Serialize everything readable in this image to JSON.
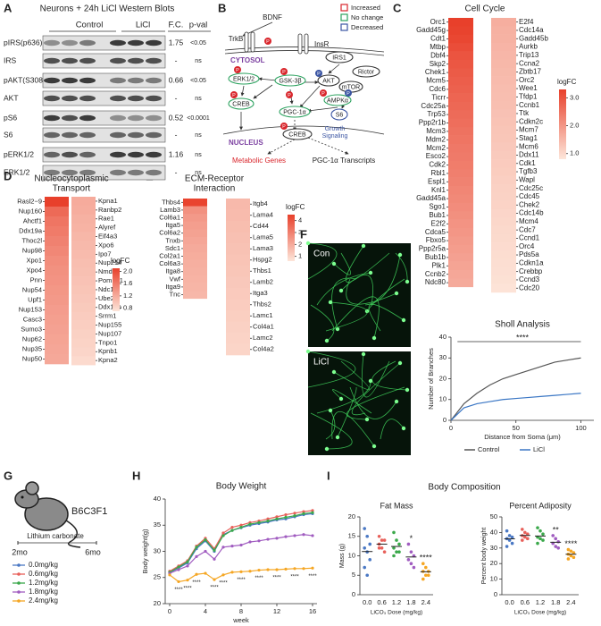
{
  "panel_labels": [
    "A",
    "B",
    "C",
    "D",
    "E",
    "F",
    "G",
    "H",
    "I"
  ],
  "western_blot": {
    "title": "Neurons + 24h LiCl Western Blots",
    "headers": [
      "Control",
      "LiCl",
      "F.C.",
      "p-val"
    ],
    "rows": [
      {
        "protein": "pIRS(p636)",
        "fc": 1.75,
        "pval": "<0.05"
      },
      {
        "protein": "IRS",
        "fc": "-",
        "pval": "ns"
      },
      {
        "protein": "pAKT(S308)",
        "fc": 0.66,
        "pval": "<0.05"
      },
      {
        "protein": "AKT",
        "fc": "-",
        "pval": "ns"
      },
      {
        "protein": "pS6",
        "fc": 0.52,
        "pval": "<0.0001"
      },
      {
        "protein": "S6",
        "fc": "-",
        "pval": "ns"
      },
      {
        "protein": "pERK1/2",
        "fc": 1.16,
        "pval": "ns"
      },
      {
        "protein": "ERK1/2",
        "fc": "-",
        "pval": "ns"
      }
    ]
  },
  "pathway": {
    "bdnf": "BDNF",
    "trkb": "TrkB",
    "insr": "InsR",
    "cytosol": "CYTOSOL",
    "irs1": "IRS1",
    "erk": "ERK1/2",
    "gsk": "GSK-3β",
    "akt": "AKT",
    "rictor": "Rictor",
    "mtor": "mTOR",
    "creb": "CREB",
    "pgc": "PGC-1α",
    "ampk": "AMPKα",
    "s6": "S6",
    "growth": [
      "Growth",
      "Signaling"
    ],
    "nucleus": "NUCLEUS",
    "metabolic": "Metabolic Genes",
    "transcripts": "PGC-1α Transcripts",
    "phospho": "P",
    "legend": [
      "Increased",
      "No change",
      "Decreased"
    ]
  },
  "image_panel": {
    "con": "Con",
    "licl": "LiCl"
  },
  "study_design": {
    "strain": "B6C3F1",
    "treatment": "Lithium carbonate",
    "start": "2mo",
    "end": "6mo"
  },
  "body_composition_title": "Body Composition",
  "chart_data": [
    {
      "type": "heatmap",
      "title": "Cell Cycle",
      "colorbar_label": "logFC",
      "colors": [
        "#fde6da",
        "#e8402b"
      ],
      "clim": [
        0.8,
        3.3
      ],
      "cticks": [
        {
          "value": 1,
          "label": "1.0"
        },
        {
          "value": 2,
          "label": "2.0"
        },
        {
          "value": 3,
          "label": "3.0"
        }
      ],
      "columns": [
        {
          "categories": [
            "Orc1",
            "Gadd45g",
            "Cdt1",
            "Mtbp",
            "Dbf4",
            "Skp2",
            "Chek1",
            "Mcm5",
            "Cdc6",
            "Ticrr",
            "Cdc25a",
            "Trp53",
            "Ppp2r1b",
            "Mcm3",
            "Mdm2",
            "Mcm2",
            "Esco2",
            "Cdk2",
            "Rbl1",
            "Espl1",
            "Knl1",
            "Gadd45a",
            "Sgo1",
            "Bub1",
            "E2f2",
            "Cdca5",
            "Fbxo5",
            "Ppp2r5a",
            "Bub1b",
            "Plk1",
            "Ccnb2",
            "Ndc80"
          ],
          "values": [
            3.3,
            3.25,
            3.2,
            3.1,
            3.0,
            2.95,
            2.9,
            2.85,
            2.8,
            2.75,
            2.7,
            2.65,
            2.6,
            2.55,
            2.5,
            2.45,
            2.42,
            2.38,
            2.35,
            2.3,
            2.25,
            2.2,
            2.15,
            2.1,
            2.05,
            2.0,
            1.95,
            1.9,
            1.85,
            1.8,
            1.75,
            1.7
          ]
        },
        {
          "categories": [
            "E2f4",
            "Cdc14a",
            "Gadd45b",
            "Aurkb",
            "Trip13",
            "Ccna2",
            "Zbtb17",
            "Orc2",
            "Wee1",
            "Tfdp1",
            "Ccnb1",
            "Ttk",
            "Cdkn2c",
            "Mcm7",
            "Stag1",
            "Mcm6",
            "Ddx11",
            "Cdk1",
            "Tgfb3",
            "Wapl",
            "Cdc25c",
            "Cdc45",
            "Chek2",
            "Cdc14b",
            "Mcm4",
            "Cdc7",
            "Ccnd1",
            "Orc4",
            "Pds5a",
            "Cdkn1a",
            "Crebbp",
            "Ccnd3",
            "Cdc20"
          ],
          "values": [
            1.65,
            1.6,
            1.58,
            1.55,
            1.52,
            1.5,
            1.47,
            1.45,
            1.42,
            1.4,
            1.38,
            1.35,
            1.33,
            1.3,
            1.28,
            1.25,
            1.22,
            1.2,
            1.18,
            1.15,
            1.12,
            1.1,
            1.08,
            1.05,
            1.03,
            1.0,
            0.98,
            0.96,
            0.94,
            0.92,
            0.9,
            0.88,
            0.85
          ]
        }
      ]
    },
    {
      "type": "heatmap",
      "title": [
        "Nucleocytoplasmic",
        "Transport"
      ],
      "colorbar_label": "logFC",
      "colors": [
        "#fde6da",
        "#e8402b"
      ],
      "clim": [
        0.7,
        2.1
      ],
      "cticks": [
        0.8,
        1.2,
        1.6,
        {
          "value": 2,
          "label": "2.0"
        }
      ],
      "columns": [
        {
          "categories": [
            "Rasl2−9",
            "Nup160",
            "Ahctf1",
            "Ddx19a",
            "Thoc2l",
            "Nup98",
            "Xpo1",
            "Xpo4",
            "Pnn",
            "Nup54",
            "Upf1",
            "Nup153",
            "Casc3",
            "Sumo3",
            "Nup62",
            "Nup35",
            "Nup50"
          ],
          "values": [
            2.1,
            1.75,
            1.65,
            1.6,
            1.55,
            1.5,
            1.45,
            1.42,
            1.4,
            1.37,
            1.35,
            1.32,
            1.3,
            1.28,
            1.26,
            1.24,
            1.22
          ]
        },
        {
          "categories": [
            "Kpna1",
            "Ranbp2",
            "Rae1",
            "Alyref",
            "Eif4a3",
            "Xpo6",
            "Ipo7",
            "Nup214",
            "Nmd3",
            "Pom121",
            "Ndc1",
            "Ube2i",
            "Ddx19b",
            "Srrm1",
            "Nup155",
            "Nup107",
            "Tnpo1",
            "Kpnb1",
            "Kpna2"
          ],
          "values": [
            1.2,
            1.18,
            1.15,
            1.13,
            1.1,
            1.08,
            1.06,
            1.04,
            1.02,
            1.0,
            0.98,
            0.96,
            0.94,
            0.92,
            0.9,
            0.88,
            0.86,
            0.84,
            0.8
          ]
        }
      ]
    },
    {
      "type": "heatmap",
      "title": [
        "ECM-Receptor",
        "Interaction"
      ],
      "colorbar_label": "logFC",
      "colors": [
        "#fde6da",
        "#e8402b"
      ],
      "clim": [
        0.6,
        4.5
      ],
      "cticks": [
        1,
        2,
        3,
        4
      ],
      "columns": [
        {
          "categories": [
            "Thbs4",
            "Lamb3",
            "Col6a1",
            "Itga5",
            "Col6a2",
            "Tnxb",
            "Sdc1",
            "Col2a1",
            "Col6a3",
            "Itga8",
            "Vwf",
            "Itga9",
            "Tnc"
          ],
          "values": [
            4.4,
            2.6,
            2.4,
            2.3,
            2.2,
            2.1,
            2.0,
            1.95,
            1.9,
            1.85,
            1.8,
            1.75,
            1.7
          ]
        },
        {
          "categories": [
            "Itgb4",
            "Lama4",
            "Cd44",
            "Lama5",
            "Lama3",
            "Hspg2",
            "Thbs1",
            "Lamb2",
            "Itga3",
            "Thbs2",
            "Lamc1",
            "Col4a1",
            "Lamc2",
            "Col4a2"
          ],
          "values": [
            1.65,
            1.6,
            1.55,
            1.5,
            1.45,
            1.4,
            1.35,
            1.3,
            1.25,
            1.2,
            1.15,
            1.1,
            1.05,
            1.0
          ]
        }
      ]
    },
    {
      "type": "line",
      "title": "Sholl Analysis",
      "xlabel": "Distance from Soma (μm)",
      "ylabel": "Number of Branches",
      "x": [
        0,
        10,
        20,
        30,
        40,
        50,
        60,
        70,
        80,
        90,
        100
      ],
      "xlim": [
        0,
        110
      ],
      "xticks": [
        0,
        50,
        100
      ],
      "ylim": [
        0,
        40
      ],
      "yticks": [
        0,
        10,
        20,
        30,
        40
      ],
      "annotation": "****",
      "series": [
        {
          "name": "Control",
          "color": "#555555",
          "values": [
            0,
            8,
            13,
            17,
            20,
            22,
            24,
            26,
            28,
            29,
            30
          ]
        },
        {
          "name": "LiCl",
          "color": "#3a76c4",
          "values": [
            0,
            6,
            8,
            9,
            10,
            10.5,
            11,
            11.5,
            12,
            12.5,
            13
          ]
        }
      ]
    },
    {
      "type": "line",
      "title": "Body Weight",
      "xlabel": "week",
      "ylabel": "Body weight(g)",
      "x": [
        0,
        1,
        2,
        3,
        4,
        5,
        6,
        7,
        8,
        9,
        10,
        11,
        12,
        13,
        14,
        15,
        16
      ],
      "xlim": [
        -0.5,
        16.5
      ],
      "xticks": [
        0,
        4,
        8,
        12,
        16
      ],
      "ylim": [
        20,
        40
      ],
      "yticks": [
        20,
        25,
        30,
        35,
        40
      ],
      "series": [
        {
          "name": "0.0mg/kg",
          "color": "#4a78c4",
          "values": [
            26,
            26.8,
            27.8,
            30.5,
            32,
            30,
            33.2,
            34,
            34.5,
            35,
            35.3,
            35.6,
            36,
            36.2,
            36.6,
            37,
            37.2
          ]
        },
        {
          "name": "0.6mg/kg",
          "color": "#e8605a",
          "values": [
            26.2,
            27.2,
            28.2,
            31,
            32.5,
            30.5,
            33.5,
            34.6,
            35,
            35.5,
            35.8,
            36.2,
            36.6,
            37,
            37.3,
            37.6,
            37.8
          ]
        },
        {
          "name": "1.2mg/kg",
          "color": "#3aa84a",
          "values": [
            26,
            27,
            28,
            30.8,
            32.2,
            30.2,
            33,
            34,
            34.6,
            35.2,
            35.5,
            35.8,
            36.2,
            36.5,
            36.8,
            37.2,
            37.4
          ]
        },
        {
          "name": "1.8mg/kg",
          "color": "#a05cc0",
          "values": [
            25.8,
            26.5,
            27.2,
            29,
            30,
            28.5,
            30.8,
            31,
            31.2,
            31.8,
            32,
            32.3,
            32.5,
            32.8,
            33,
            33.2,
            33
          ]
        },
        {
          "name": "2.4mg/kg",
          "color": "#f5a623",
          "values": [
            25.5,
            24.2,
            24.5,
            25.6,
            25.8,
            24.6,
            25.5,
            26,
            26.1,
            26.2,
            26.4,
            26.5,
            26.5,
            26.6,
            26.7,
            26.7,
            26.8
          ]
        }
      ],
      "annotations": [
        {
          "x": 1,
          "label": "****"
        },
        {
          "x": 2,
          "label": "****"
        },
        {
          "x": 3,
          "label": "****"
        },
        {
          "x": 5,
          "label": "****"
        },
        {
          "x": 6,
          "label": "****"
        },
        {
          "x": 8,
          "label": "****"
        },
        {
          "x": 10,
          "label": "****"
        },
        {
          "x": 12,
          "label": "****"
        },
        {
          "x": 14,
          "label": "****"
        },
        {
          "x": 16,
          "label": "****"
        }
      ]
    },
    {
      "type": "dot",
      "title": "Fat Mass",
      "xlabel": "LiCO₃ Dose (mg/kg)",
      "ylabel": "Mass (g)",
      "categories": [
        "0.0",
        "0.6",
        "1.2",
        "1.8",
        "2.4"
      ],
      "colors": [
        "#4a78c4",
        "#e8605a",
        "#3aa84a",
        "#a05cc0",
        "#f5a623"
      ],
      "ylim": [
        0,
        20
      ],
      "yticks": [
        0,
        5,
        10,
        15,
        20
      ],
      "values": [
        11.1,
        13,
        12.4,
        9.7,
        5.9
      ],
      "points": [
        [
          17,
          15,
          13,
          12,
          11,
          9,
          7,
          5
        ],
        [
          15,
          14,
          14,
          13,
          12,
          11,
          12
        ],
        [
          16,
          14,
          13,
          12,
          11,
          11,
          10
        ],
        [
          13,
          11,
          10,
          9,
          8,
          7
        ],
        [
          8,
          7,
          6,
          6,
          5,
          5,
          4
        ]
      ],
      "significance": [
        null,
        null,
        null,
        "*",
        "****"
      ]
    },
    {
      "type": "dot",
      "title": "Percent Adiposity",
      "xlabel": "LiCO₃ Dose (mg/kg)",
      "ylabel": "Percent body weight",
      "categories": [
        "0.0",
        "0.6",
        "1.2",
        "1.8",
        "2.4"
      ],
      "colors": [
        "#4a78c4",
        "#e8605a",
        "#3aa84a",
        "#a05cc0",
        "#f5a623"
      ],
      "ylim": [
        0,
        50
      ],
      "yticks": [
        0,
        10,
        20,
        30,
        40,
        50
      ],
      "values": [
        35.9,
        38.1,
        37.7,
        33.7,
        26
      ],
      "points": [
        [
          41,
          38,
          37,
          36,
          35,
          33,
          31
        ],
        [
          42,
          40,
          39,
          38,
          37,
          36,
          35
        ],
        [
          43,
          41,
          39,
          37,
          36,
          35,
          33
        ],
        [
          38,
          36,
          34,
          33,
          31,
          30
        ],
        [
          29,
          28,
          27,
          26,
          25,
          24,
          23
        ]
      ],
      "significance": [
        null,
        null,
        null,
        "**",
        "****"
      ]
    }
  ]
}
